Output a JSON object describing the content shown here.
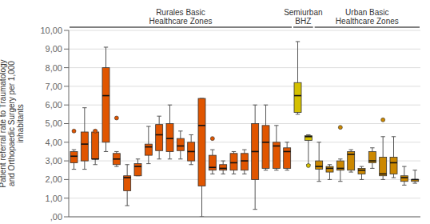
{
  "chart_data": {
    "type": "box",
    "ylabel": "Patient referral rate to Traumatology\nand Orthopaedic Surgery per 1,000\ninhabitants",
    "ylim": [
      0.0,
      10.0
    ],
    "yticks": [
      {
        "value": 0.0,
        "label": ",00"
      },
      {
        "value": 1.0,
        "label": "1,00"
      },
      {
        "value": 2.0,
        "label": "2,00"
      },
      {
        "value": 3.0,
        "label": "3,00"
      },
      {
        "value": 4.0,
        "label": "4,00"
      },
      {
        "value": 5.0,
        "label": "5,00"
      },
      {
        "value": 6.0,
        "label": "6,00"
      },
      {
        "value": 7.0,
        "label": "7,00"
      },
      {
        "value": 8.0,
        "label": "8,00"
      },
      {
        "value": 9.0,
        "label": "9,00"
      },
      {
        "value": 10.0,
        "label": "10,00"
      }
    ],
    "grid": true,
    "tick_labels": "y",
    "groups": [
      {
        "text": "Rurales Basic\nHealthcare Zones",
        "color": "#e05500",
        "boxes": [
          {
            "q1": 2.9,
            "med": 3.25,
            "q3": 3.5,
            "whislo": 2.55,
            "whishi": 3.6,
            "fliers": [
              4.6
            ]
          },
          {
            "q1": 3.0,
            "med": 3.9,
            "q3": 4.55,
            "whislo": 2.55,
            "whishi": 5.85,
            "fliers": []
          },
          {
            "q1": 3.1,
            "med": 3.1,
            "q3": 4.55,
            "whislo": 2.8,
            "whishi": 4.65,
            "fliers": [
              4.6
            ]
          },
          {
            "q1": 4.0,
            "med": 6.5,
            "q3": 8.0,
            "whislo": 3.5,
            "whishi": 9.1,
            "fliers": []
          },
          {
            "q1": 2.8,
            "med": 3.1,
            "q3": 3.4,
            "whislo": 2.7,
            "whishi": 3.5,
            "fliers": [
              5.3
            ]
          },
          {
            "q1": 1.4,
            "med": 2.1,
            "q3": 2.2,
            "whislo": 0.6,
            "whishi": 2.8,
            "fliers": []
          },
          {
            "q1": 2.2,
            "med": 2.7,
            "q3": 2.85,
            "whislo": 2.2,
            "whishi": 3.1,
            "fliers": []
          },
          {
            "q1": 3.3,
            "med": 3.75,
            "q3": 3.9,
            "whislo": 2.85,
            "whishi": 4.85,
            "fliers": []
          },
          {
            "q1": 3.55,
            "med": 4.4,
            "q3": 4.95,
            "whislo": 3.1,
            "whishi": 5.4,
            "fliers": []
          },
          {
            "q1": 3.5,
            "med": 4.2,
            "q3": 5.0,
            "whislo": 3.1,
            "whishi": 6.0,
            "fliers": []
          },
          {
            "q1": 3.55,
            "med": 3.8,
            "q3": 4.2,
            "whislo": 3.1,
            "whishi": 4.6,
            "fliers": []
          },
          {
            "q1": 3.0,
            "med": 3.5,
            "q3": 4.0,
            "whislo": 2.8,
            "whishi": 4.4,
            "fliers": []
          },
          {
            "q1": 1.65,
            "med": 4.9,
            "q3": 6.35,
            "whislo": 0.0,
            "whishi": 6.35,
            "fliers": []
          },
          {
            "q1": 2.5,
            "med": 2.65,
            "q3": 3.3,
            "whislo": 2.3,
            "whishi": 3.6,
            "fliers": [
              4.2
            ]
          },
          {
            "q1": 2.5,
            "med": 2.6,
            "q3": 2.8,
            "whislo": 2.3,
            "whishi": 3.0,
            "fliers": []
          },
          {
            "q1": 2.5,
            "med": 2.9,
            "q3": 3.4,
            "whislo": 2.3,
            "whishi": 3.5,
            "fliers": []
          },
          {
            "q1": 2.5,
            "med": 3.0,
            "q3": 3.4,
            "whislo": 2.3,
            "whishi": 3.6,
            "fliers": []
          },
          {
            "q1": 2.0,
            "med": 3.5,
            "q3": 5.0,
            "whislo": 0.4,
            "whishi": 6.0,
            "fliers": []
          },
          {
            "q1": 2.6,
            "med": 4.0,
            "q3": 4.9,
            "whislo": 2.5,
            "whishi": 6.0,
            "fliers": []
          },
          {
            "q1": 2.6,
            "med": 3.8,
            "q3": 4.0,
            "whislo": 2.5,
            "whishi": 4.9,
            "fliers": []
          },
          {
            "q1": 2.6,
            "med": 3.5,
            "q3": 3.7,
            "whislo": 2.5,
            "whishi": 4.0,
            "fliers": []
          }
        ]
      },
      {
        "text": "Semiurban\nBHZ",
        "color": "#d4c000",
        "boxes": [
          {
            "q1": 5.6,
            "med": 6.5,
            "q3": 7.2,
            "whislo": 5.5,
            "whishi": 9.4,
            "fliers": []
          },
          {
            "q1": 4.1,
            "med": 4.3,
            "q3": 4.35,
            "whislo": 2.8,
            "whishi": 4.4,
            "fliers": [
              2.75
            ]
          }
        ]
      },
      {
        "text": "Urban Basic\nHealthcare Zones",
        "color": "#cc8800",
        "boxes": [
          {
            "q1": 2.55,
            "med": 2.7,
            "q3": 3.0,
            "whislo": 1.9,
            "whishi": 4.0,
            "fliers": []
          },
          {
            "q1": 2.4,
            "med": 2.6,
            "q3": 2.7,
            "whislo": 2.0,
            "whishi": 2.8,
            "fliers": []
          },
          {
            "q1": 2.5,
            "med": 2.6,
            "q3": 3.0,
            "whislo": 1.9,
            "whishi": 3.1,
            "fliers": [
              4.8
            ]
          },
          {
            "q1": 2.5,
            "med": 3.35,
            "q3": 3.5,
            "whislo": 2.4,
            "whishi": 3.6,
            "fliers": []
          },
          {
            "q1": 2.3,
            "med": 2.5,
            "q3": 2.6,
            "whislo": 2.0,
            "whishi": 2.7,
            "fliers": []
          },
          {
            "q1": 2.9,
            "med": 3.0,
            "q3": 3.5,
            "whislo": 2.6,
            "whishi": 3.7,
            "fliers": []
          },
          {
            "q1": 2.2,
            "med": 2.3,
            "q3": 3.2,
            "whislo": 2.0,
            "whishi": 4.3,
            "fliers": [
              5.2
            ]
          },
          {
            "q1": 2.3,
            "med": 2.9,
            "q3": 3.2,
            "whislo": 2.1,
            "whishi": 4.3,
            "fliers": []
          },
          {
            "q1": 1.9,
            "med": 2.1,
            "q3": 2.2,
            "whislo": 1.7,
            "whishi": 2.7,
            "fliers": []
          },
          {
            "q1": 1.9,
            "med": 2.0,
            "q3": 2.0,
            "whislo": 1.8,
            "whishi": 2.5,
            "fliers": []
          }
        ]
      }
    ]
  }
}
